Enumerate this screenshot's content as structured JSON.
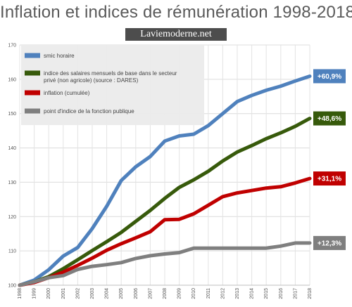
{
  "header": {
    "title": "Inflation et indices de rémunération 1998-2018",
    "watermark": "Laviemoderne.net"
  },
  "chart_data": {
    "type": "line",
    "title": "Inflation et indices de rémunération 1998-2018",
    "xlabel": "",
    "ylabel": "",
    "x": [
      1998,
      1999,
      2000,
      2001,
      2002,
      2003,
      2004,
      2005,
      2006,
      2007,
      2008,
      2009,
      2010,
      2011,
      2012,
      2013,
      2014,
      2015,
      2016,
      2017,
      2018
    ],
    "ylim": [
      100,
      170
    ],
    "yticks": [
      100,
      110,
      120,
      130,
      140,
      150,
      160,
      170
    ],
    "grid": true,
    "legend_position": "top-left",
    "series": [
      {
        "name": "smic horaire",
        "color": "#4f81bd",
        "values": [
          100,
          101.5,
          104.5,
          108.5,
          111,
          116.5,
          123,
          130.5,
          134.5,
          137.5,
          142,
          143.5,
          144,
          146.5,
          150,
          153.5,
          155.3,
          156.8,
          158,
          159.5,
          160.9
        ],
        "end_label": "+60,9%"
      },
      {
        "name": "indice des salaires mensuels de base dans le secteur privé (non agricole) (source : DARES)",
        "legend_lines": [
          "indice des salaires mensuels de base dans le secteur",
          "privé (non agricole) (source : DARES)"
        ],
        "color": "#375a0b",
        "values": [
          100,
          101,
          102.5,
          104.8,
          107.4,
          110.1,
          112.7,
          115.4,
          118.6,
          121.8,
          125.3,
          128.5,
          130.7,
          133.2,
          136.2,
          138.8,
          140.7,
          142.7,
          144.4,
          146.3,
          148.6
        ],
        "end_label": "+48,6%"
      },
      {
        "name": "inflation (cumulée)",
        "color": "#c00000",
        "values": [
          100,
          100.8,
          102.2,
          103.8,
          105.8,
          107.9,
          110.2,
          112.1,
          113.8,
          115.6,
          119.1,
          119.2,
          120.8,
          123.3,
          125.8,
          126.9,
          127.6,
          128.3,
          128.7,
          129.8,
          131.1
        ],
        "end_label": "+31,1%"
      },
      {
        "name": "point d'indice de la fonction publique",
        "color": "#7f7f7f",
        "values": [
          100,
          101,
          102.2,
          102.8,
          104.6,
          105.5,
          106,
          106.6,
          107.8,
          108.6,
          109.1,
          109.5,
          110.8,
          110.8,
          110.8,
          110.8,
          110.8,
          110.8,
          111.4,
          112.3,
          112.3
        ],
        "end_label": "+12,3%"
      }
    ]
  }
}
